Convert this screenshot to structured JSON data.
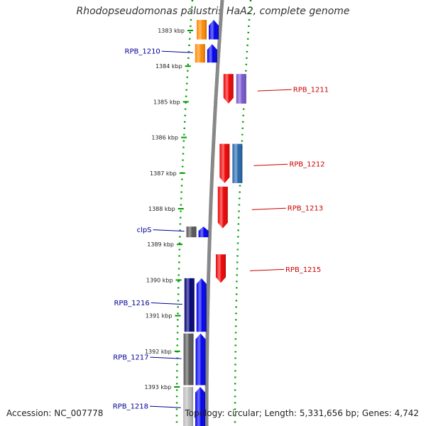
{
  "title": "Rhodopseudomonas palustris HaA2, complete genome",
  "footer": {
    "accession": "Accession: NC_007778",
    "topology": "Topology: circular; Length: 5,331,656 bp; Genes: 4,742"
  },
  "colors": {
    "forward_label": "#000099",
    "reverse_label": "#cc0000",
    "backbone": "#888888",
    "dashes": "#009900"
  },
  "ticks": [
    "1383 kbp",
    "1384 kbp",
    "1385 kbp",
    "1386 kbp",
    "1387 kbp",
    "1388 kbp",
    "1389 kbp",
    "1390 kbp",
    "1391 kbp",
    "1392 kbp",
    "1393 kbp"
  ],
  "genes_forward": [
    {
      "label": "",
      "start_kbp": 1382.7,
      "end_kbp": 1383.25,
      "cds_color": "#0000ee",
      "feature_color": "#ff8800"
    },
    {
      "label": "RPB_1210",
      "start_kbp": 1383.38,
      "end_kbp": 1383.9,
      "cds_color": "#0000ee",
      "feature_color": "#ff8800"
    },
    {
      "label": "clpS",
      "start_kbp": 1388.5,
      "end_kbp": 1388.8,
      "cds_color": "#0000ee",
      "feature_color": "#555555"
    },
    {
      "label": "RPB_1216",
      "start_kbp": 1389.95,
      "end_kbp": 1391.45,
      "cds_color": "#0000ee",
      "feature_color": "#000077"
    },
    {
      "label": "RPB_1217",
      "start_kbp": 1391.5,
      "end_kbp": 1392.95,
      "cds_color": "#0000ee",
      "feature_color": "#555555"
    },
    {
      "label": "RPB_1218",
      "start_kbp": 1393.0,
      "end_kbp": 1394.2,
      "cds_color": "#0000ee",
      "feature_color": "#bbbbbb"
    }
  ],
  "genes_reverse": [
    {
      "label": "RPB_1211",
      "start_kbp": 1384.22,
      "end_kbp": 1385.05,
      "cds_color": "#ee0000",
      "feature_color": "#7755cc"
    },
    {
      "label": "RPB_1212",
      "start_kbp": 1386.18,
      "end_kbp": 1387.28,
      "cds_color": "#ee0000",
      "feature_color": "#2266aa"
    },
    {
      "label": "RPB_1213",
      "start_kbp": 1387.38,
      "end_kbp": 1388.55,
      "cds_color": "#ee0000",
      "feature_color": ""
    },
    {
      "label": "RPB_1215",
      "start_kbp": 1389.28,
      "end_kbp": 1390.08,
      "cds_color": "#ee0000",
      "feature_color": ""
    }
  ]
}
